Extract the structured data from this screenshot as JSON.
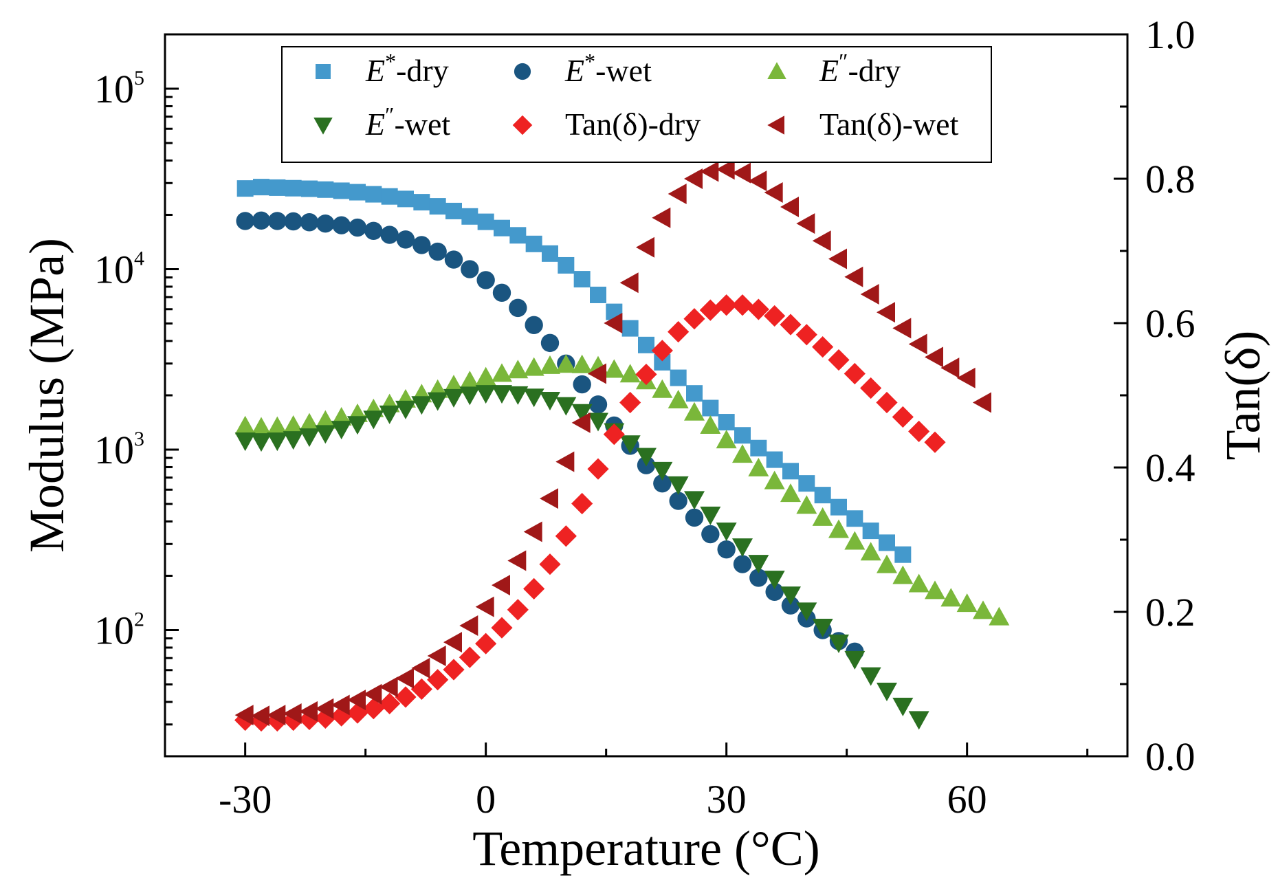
{
  "chart_data": {
    "type": "scatter",
    "x_axis": {
      "label": "Temperature (°C)",
      "range": [
        -40,
        80
      ],
      "ticks": [
        -30,
        0,
        30,
        60
      ],
      "tick_labels": [
        "-30",
        "0",
        "30",
        "60"
      ]
    },
    "y_axis_left": {
      "label": "Modulus (MPa)",
      "scale": "log",
      "range": [
        20,
        200000
      ],
      "ticks": [
        100,
        1000,
        10000,
        100000
      ],
      "tick_bases": [
        "10",
        "10",
        "10",
        "10"
      ],
      "tick_exponents": [
        "2",
        "3",
        "4",
        "5"
      ]
    },
    "y_axis_right": {
      "label": "Tan(δ)",
      "scale": "linear",
      "range": [
        0,
        1
      ],
      "ticks": [
        0,
        0.2,
        0.4,
        0.6,
        0.8,
        1.0
      ],
      "tick_labels": [
        "0.0",
        "0.2",
        "0.4",
        "0.6",
        "0.8",
        "1.0"
      ]
    },
    "legend": {
      "position": "top",
      "columns": 3,
      "dash": "-"
    },
    "series": [
      {
        "name": "E*-dry",
        "symbol": "E",
        "sup": "*",
        "suffix": "dry",
        "axis": "left",
        "marker": "square",
        "color": "#4499cc",
        "x_start": -30,
        "x_step": 2,
        "values": [
          28000,
          28500,
          28300,
          28100,
          27900,
          27600,
          27200,
          26700,
          26000,
          25300,
          24500,
          23500,
          22300,
          21000,
          19600,
          18300,
          16900,
          15400,
          13800,
          12200,
          10500,
          8800,
          7200,
          5800,
          4700,
          3800,
          3050,
          2500,
          2050,
          1700,
          1420,
          1200,
          1020,
          880,
          760,
          650,
          560,
          480,
          415,
          355,
          305,
          262
        ]
      },
      {
        "name": "E*-wet",
        "symbol": "E",
        "sup": "*",
        "suffix": "wet",
        "axis": "left",
        "marker": "circle",
        "color": "#1a5580",
        "x_start": -30,
        "x_step": 2,
        "values": [
          18500,
          18600,
          18500,
          18400,
          18200,
          17900,
          17500,
          17000,
          16300,
          15500,
          14600,
          13600,
          12500,
          11300,
          10000,
          8700,
          7400,
          6100,
          4900,
          3900,
          3000,
          2300,
          1780,
          1360,
          1050,
          820,
          650,
          520,
          420,
          340,
          280,
          232,
          195,
          163,
          137,
          116,
          100,
          87,
          76
        ]
      },
      {
        "name": "E″-dry",
        "symbol": "E",
        "sup": "″",
        "suffix": "dry",
        "axis": "left",
        "marker": "triangle-up",
        "color": "#7ab73a",
        "x_start": -30,
        "x_step": 2,
        "values": [
          1350,
          1330,
          1340,
          1360,
          1400,
          1450,
          1510,
          1580,
          1680,
          1790,
          1900,
          2030,
          2150,
          2280,
          2400,
          2520,
          2640,
          2760,
          2850,
          2920,
          2960,
          2950,
          2900,
          2780,
          2620,
          2400,
          2150,
          1880,
          1610,
          1360,
          1130,
          940,
          790,
          670,
          570,
          490,
          420,
          360,
          310,
          270,
          230,
          200,
          180,
          165,
          150,
          140,
          128,
          118
        ]
      },
      {
        "name": "E″-wet",
        "symbol": "E",
        "sup": "″",
        "suffix": "wet",
        "axis": "left",
        "marker": "triangle-down",
        "color": "#2a7020",
        "x_start": -30,
        "x_step": 2,
        "values": [
          1120,
          1110,
          1120,
          1140,
          1180,
          1230,
          1300,
          1380,
          1480,
          1580,
          1680,
          1780,
          1870,
          1950,
          2010,
          2050,
          2050,
          2020,
          1960,
          1880,
          1760,
          1610,
          1440,
          1260,
          1080,
          920,
          770,
          640,
          530,
          435,
          355,
          290,
          235,
          192,
          157,
          128,
          104,
          85,
          69,
          56,
          46,
          38,
          32
        ]
      },
      {
        "name": "Tan(δ)-dry",
        "symbol": "",
        "sup": "",
        "suffix": "",
        "axis": "right",
        "marker": "diamond",
        "color": "#ee2222",
        "x_start": -30,
        "x_step": 2,
        "values": [
          0.05,
          0.049,
          0.049,
          0.05,
          0.051,
          0.053,
          0.056,
          0.06,
          0.066,
          0.073,
          0.082,
          0.093,
          0.106,
          0.12,
          0.137,
          0.156,
          0.178,
          0.203,
          0.232,
          0.266,
          0.305,
          0.35,
          0.398,
          0.446,
          0.49,
          0.529,
          0.562,
          0.588,
          0.606,
          0.618,
          0.625,
          0.625,
          0.619,
          0.61,
          0.598,
          0.584,
          0.567,
          0.549,
          0.53,
          0.51,
          0.49,
          0.47,
          0.45,
          0.435
        ]
      },
      {
        "name": "Tan(δ)-wet",
        "symbol": "",
        "sup": "",
        "suffix": "",
        "axis": "right",
        "marker": "triangle-left",
        "color": "#a01818",
        "x_start": -30,
        "x_step": 2,
        "values": [
          0.057,
          0.056,
          0.057,
          0.059,
          0.062,
          0.066,
          0.071,
          0.078,
          0.086,
          0.096,
          0.108,
          0.122,
          0.139,
          0.158,
          0.181,
          0.207,
          0.237,
          0.271,
          0.311,
          0.357,
          0.408,
          0.462,
          0.53,
          0.6,
          0.656,
          0.705,
          0.746,
          0.779,
          0.8,
          0.81,
          0.813,
          0.808,
          0.797,
          0.781,
          0.761,
          0.738,
          0.714,
          0.689,
          0.664,
          0.64,
          0.615,
          0.593,
          0.571,
          0.553,
          0.538,
          0.524,
          0.49
        ]
      }
    ]
  }
}
